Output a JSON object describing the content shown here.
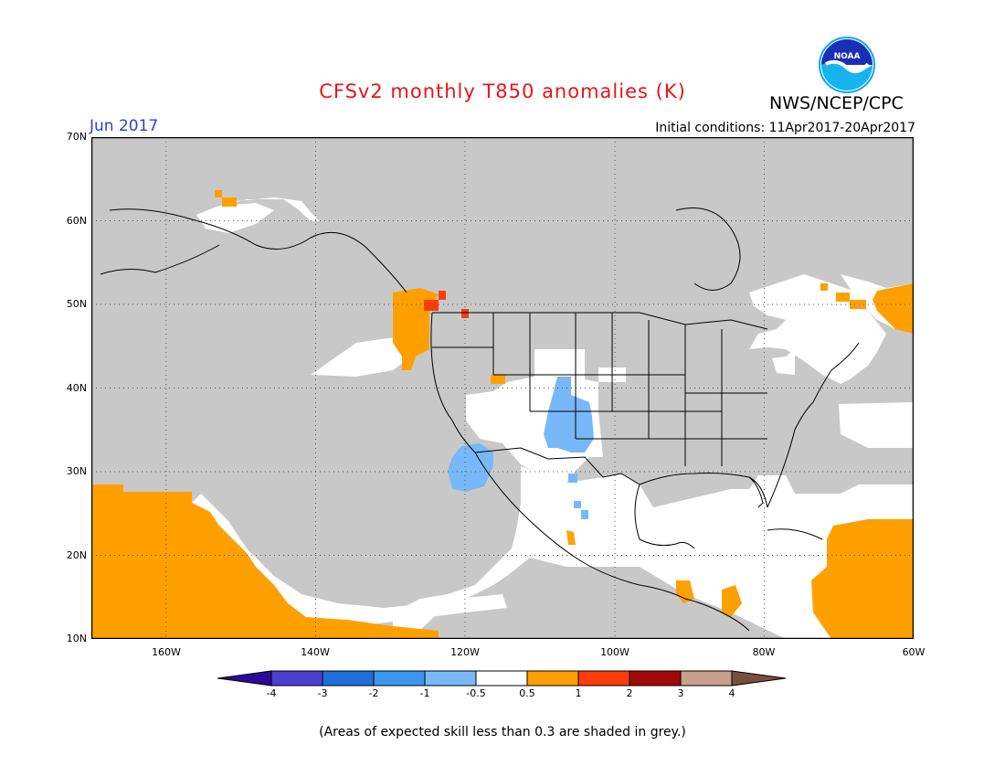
{
  "title": "CFSv2 monthly T850 anomalies (K)",
  "org_label": "NWS/NCEP/CPC",
  "logo_text": "NOAA",
  "forecast_month": "Jun 2017",
  "initial_conditions": "Initial conditions: 11Apr2017-20Apr2017",
  "lat_labels": [
    "70N",
    "60N",
    "50N",
    "40N",
    "30N",
    "20N",
    "10N"
  ],
  "lon_labels": [
    "160W",
    "140W",
    "120W",
    "100W",
    "80W",
    "60W"
  ],
  "colorbar": {
    "tick_labels": [
      "-4",
      "-3",
      "-2",
      "-1",
      "-0.5",
      "0.5",
      "1",
      "2",
      "3",
      "4"
    ],
    "colors": [
      "#2a0a9a",
      "#4a3fd0",
      "#1f6fd8",
      "#3c96f0",
      "#78b8f8",
      "#ffffff",
      "#ffa000",
      "#ff3c0a",
      "#a00a0a",
      "#c8a08c",
      "#7a4e3c"
    ]
  },
  "colors": {
    "skill_grey": "#c8c8c8",
    "positive_anomaly": "#ffa000",
    "strong_positive": "#ff3c0a",
    "negative_anomaly": "#78b8f8",
    "title_red": "#e8141a",
    "month_blue": "#2a3fd6"
  },
  "footnote": "(Areas of expected skill less than 0.3 are shaded in grey.)"
}
